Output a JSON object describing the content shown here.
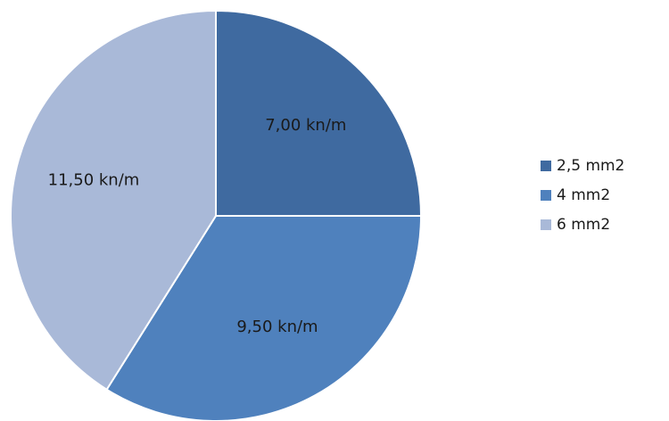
{
  "chart_data": {
    "type": "pie",
    "title": "",
    "categories": [
      "2,5 mm2",
      "4 mm2",
      "6 mm2"
    ],
    "values": [
      7.0,
      9.5,
      11.5
    ],
    "data_labels": [
      "7,00 kn/m",
      "9,50 kn/m",
      "11,50 kn/m"
    ],
    "colors": [
      "#3f6aa0",
      "#4f81bd",
      "#a9b9d8"
    ],
    "start_angle_deg": 0,
    "direction": "clockwise",
    "legend": {
      "placement": "right",
      "entries": [
        "2,5 mm2",
        "4 mm2",
        "6 mm2"
      ]
    }
  }
}
